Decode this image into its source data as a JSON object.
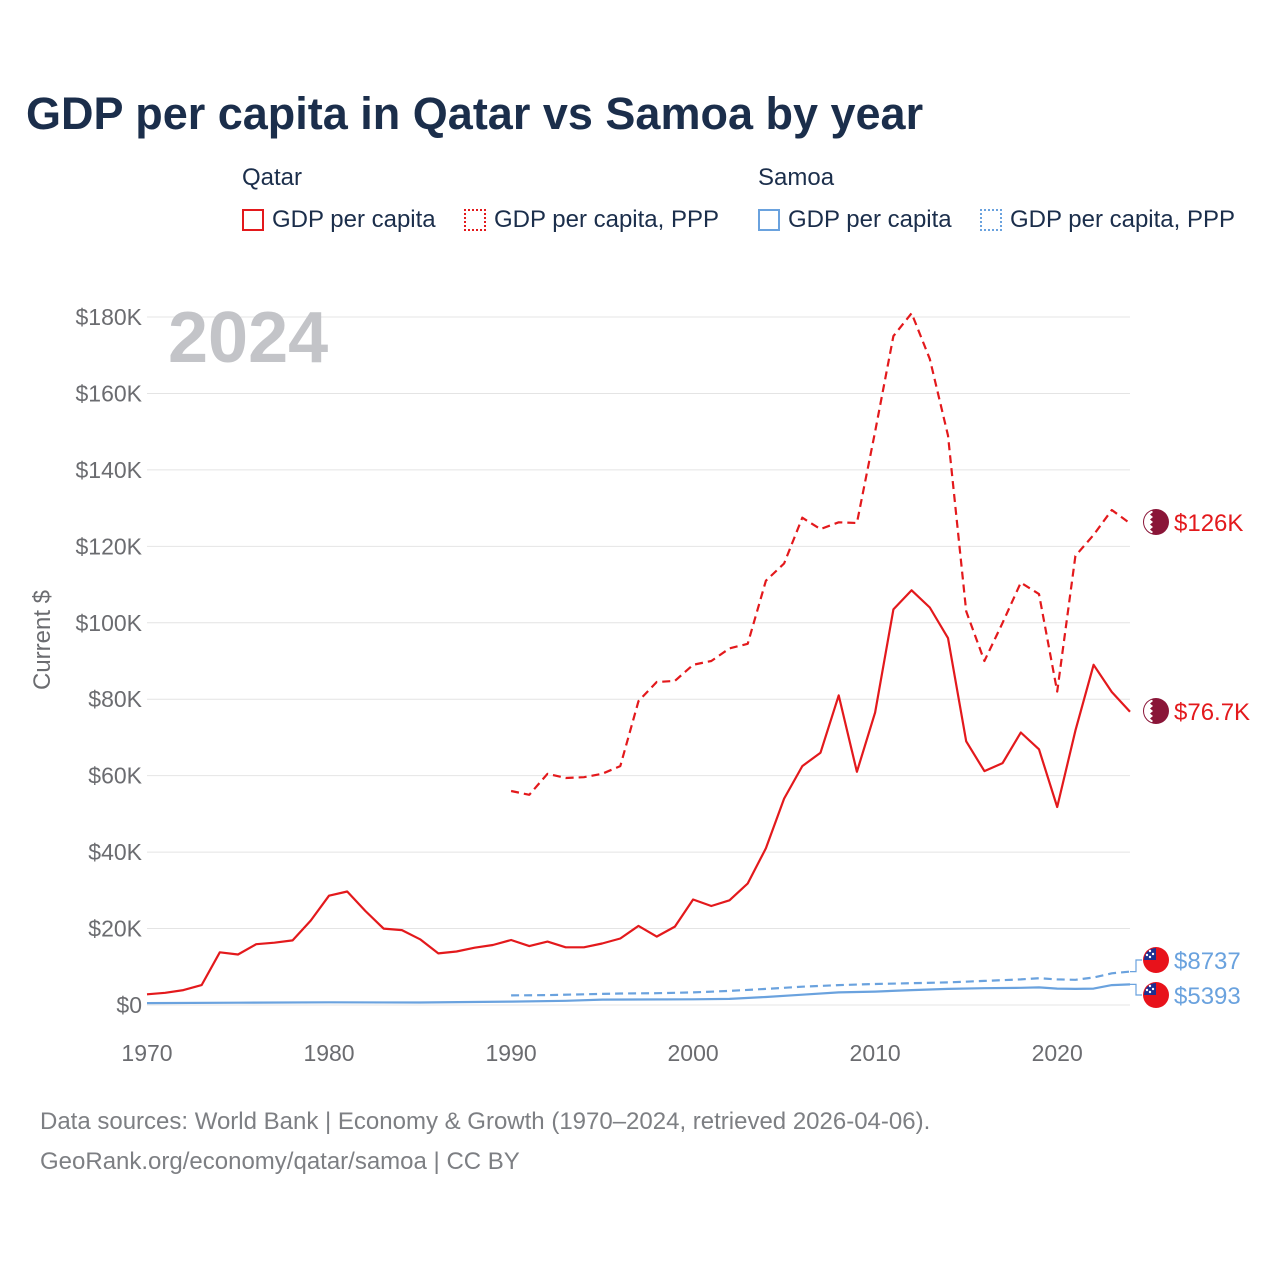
{
  "chart_data": {
    "type": "line",
    "title": "GDP per capita in Qatar vs Samoa by year",
    "year_watermark": "2024",
    "ylabel": "Current $",
    "xlabel": "",
    "xlim": [
      1970,
      2024
    ],
    "ylim": [
      0,
      180000
    ],
    "y_ticks": [
      {
        "value": 0,
        "label": "$0"
      },
      {
        "value": 20000,
        "label": "$20K"
      },
      {
        "value": 40000,
        "label": "$40K"
      },
      {
        "value": 60000,
        "label": "$60K"
      },
      {
        "value": 80000,
        "label": "$80K"
      },
      {
        "value": 100000,
        "label": "$100K"
      },
      {
        "value": 120000,
        "label": "$120K"
      },
      {
        "value": 140000,
        "label": "$140K"
      },
      {
        "value": 160000,
        "label": "$160K"
      },
      {
        "value": 180000,
        "label": "$180K"
      }
    ],
    "x_ticks": [
      {
        "value": 1970,
        "label": "1970"
      },
      {
        "value": 1980,
        "label": "1980"
      },
      {
        "value": 1990,
        "label": "1990"
      },
      {
        "value": 2000,
        "label": "2000"
      },
      {
        "value": 2010,
        "label": "2010"
      },
      {
        "value": 2020,
        "label": "2020"
      }
    ],
    "legend": {
      "groups": [
        {
          "name": "Qatar",
          "items": [
            "GDP per capita",
            "GDP per capita, PPP"
          ]
        },
        {
          "name": "Samoa",
          "items": [
            "GDP per capita",
            "GDP per capita, PPP"
          ]
        }
      ]
    },
    "series": [
      {
        "id": "qatar-ppp",
        "country": "Qatar",
        "name": "GDP per capita, PPP",
        "color": "#e3191c",
        "dashed": true,
        "x": [
          1990,
          1991,
          1992,
          1993,
          1994,
          1995,
          1996,
          1997,
          1998,
          1999,
          2000,
          2001,
          2002,
          2003,
          2004,
          2005,
          2006,
          2007,
          2008,
          2009,
          2010,
          2011,
          2012,
          2013,
          2014,
          2015,
          2016,
          2017,
          2018,
          2019,
          2020,
          2021,
          2022,
          2023,
          2024
        ],
        "values": [
          56000,
          55000,
          60500,
          59400,
          59600,
          60500,
          62500,
          79500,
          84500,
          84800,
          89000,
          90000,
          93300,
          94500,
          111000,
          115500,
          127500,
          124500,
          126300,
          126100,
          150000,
          175000,
          181000,
          169000,
          149000,
          103000,
          90000,
          100000,
          110500,
          107500,
          82000,
          117500,
          123000,
          129500,
          126000
        ],
        "end_label": "$126K"
      },
      {
        "id": "qatar-gdp",
        "country": "Qatar",
        "name": "GDP per capita",
        "color": "#e3191c",
        "dashed": false,
        "x": [
          1970,
          1971,
          1972,
          1973,
          1974,
          1975,
          1976,
          1977,
          1978,
          1979,
          1980,
          1981,
          1982,
          1983,
          1984,
          1985,
          1986,
          1987,
          1988,
          1989,
          1990,
          1991,
          1992,
          1993,
          1994,
          1995,
          1996,
          1997,
          1998,
          1999,
          2000,
          2001,
          2002,
          2003,
          2004,
          2005,
          2006,
          2007,
          2008,
          2009,
          2010,
          2011,
          2012,
          2013,
          2014,
          2015,
          2016,
          2017,
          2018,
          2019,
          2020,
          2021,
          2022,
          2023,
          2024
        ],
        "values": [
          2800,
          3200,
          3900,
          5200,
          13800,
          13200,
          15900,
          16300,
          16900,
          22100,
          28600,
          29700,
          24600,
          20000,
          19600,
          17200,
          13500,
          14000,
          15000,
          15700,
          17000,
          15400,
          16600,
          15100,
          15100,
          16100,
          17400,
          20700,
          17900,
          20500,
          27600,
          25900,
          27400,
          31800,
          41000,
          54000,
          62500,
          66000,
          81000,
          61000,
          76500,
          103500,
          108500,
          104000,
          96000,
          69000,
          61200,
          63300,
          71300,
          66900,
          51800,
          71800,
          89000,
          81900,
          76700
        ],
        "end_label": "$76.7K"
      },
      {
        "id": "samoa-ppp",
        "country": "Samoa",
        "name": "GDP per capita, PPP",
        "color": "#6aa2de",
        "dashed": true,
        "x": [
          1990,
          1992,
          1994,
          1996,
          1998,
          2000,
          2002,
          2004,
          2006,
          2008,
          2010,
          2012,
          2014,
          2016,
          2018,
          2019,
          2020,
          2021,
          2022,
          2023,
          2024
        ],
        "values": [
          2500,
          2600,
          2800,
          3000,
          3100,
          3300,
          3700,
          4200,
          4800,
          5200,
          5500,
          5700,
          5900,
          6300,
          6700,
          7000,
          6700,
          6600,
          7200,
          8300,
          8737
        ],
        "end_label": "$8737"
      },
      {
        "id": "samoa-gdp",
        "country": "Samoa",
        "name": "GDP per capita",
        "color": "#6aa2de",
        "dashed": false,
        "x": [
          1970,
          1975,
          1980,
          1985,
          1990,
          1993,
          1995,
          2000,
          2002,
          2004,
          2006,
          2008,
          2010,
          2012,
          2014,
          2016,
          2018,
          2019,
          2020,
          2021,
          2022,
          2023,
          2024
        ],
        "values": [
          500,
          600,
          700,
          650,
          900,
          1100,
          1400,
          1500,
          1600,
          2100,
          2700,
          3300,
          3500,
          3900,
          4200,
          4400,
          4500,
          4600,
          4300,
          4200,
          4300,
          5200,
          5393
        ],
        "end_label": "$5393"
      }
    ]
  },
  "footer": {
    "line1": "Data sources: World Bank | Economy & Growth (1970–2024, retrieved 2026-04-06).",
    "line2": "GeoRank.org/economy/qatar/samoa | CC BY"
  },
  "colors": {
    "qatar": "#e3191c",
    "samoa": "#6aa2de",
    "title": "#1b2e4b",
    "axis_text": "#6b6c70",
    "grid": "#e4e4e4"
  }
}
